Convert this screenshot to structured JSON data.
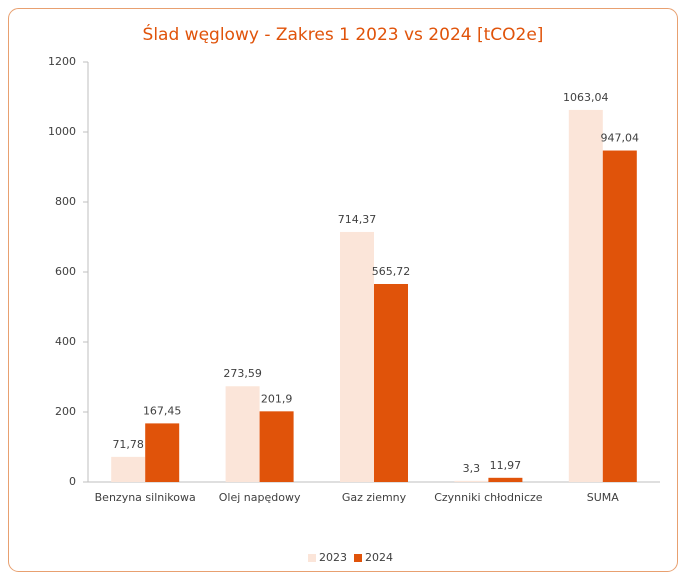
{
  "chart_data": {
    "type": "bar",
    "title": "Ślad węglowy - Zakres 1 2023 vs 2024 [tCO2e]",
    "categories": [
      "Benzyna silnikowa",
      "Olej napędowy",
      "Gaz ziemny",
      "Czynniki chłodnicze",
      "SUMA"
    ],
    "series": [
      {
        "name": "2023",
        "color": "#fbe5d9",
        "values": [
          71.78,
          273.59,
          714.37,
          3.3,
          1063.04
        ],
        "value_labels": [
          "71,78",
          "273,59",
          "714,37",
          "3,3",
          "1063,04"
        ]
      },
      {
        "name": "2024",
        "color": "#e0530a",
        "values": [
          167.45,
          201.9,
          565.72,
          11.97,
          947.04
        ],
        "value_labels": [
          "167,45",
          "201,9",
          "565,72",
          "11,97",
          "947,04"
        ]
      }
    ],
    "ylim": [
      0,
      1200
    ],
    "yticks": [
      0,
      200,
      400,
      600,
      800,
      1000,
      1200
    ],
    "grid": false,
    "legend": "bottom"
  }
}
